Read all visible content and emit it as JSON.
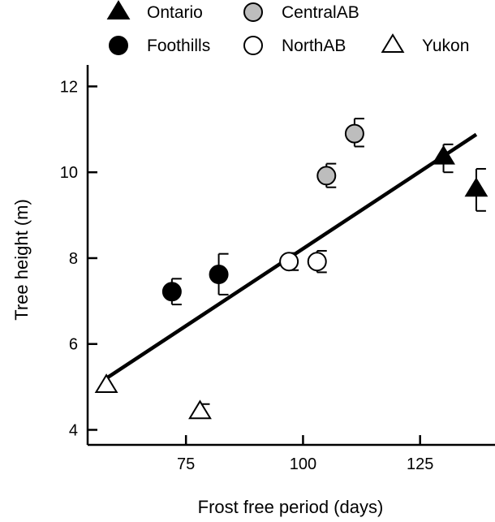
{
  "chart_data": {
    "type": "scatter",
    "title": "",
    "xlabel": "Frost free period (days)",
    "ylabel": "Tree height (m)",
    "xlim": [
      54,
      141
    ],
    "ylim": [
      3.65,
      12.5
    ],
    "xticks": [
      75,
      100,
      125
    ],
    "yticks": [
      4,
      6,
      8,
      10,
      12
    ],
    "grid": false,
    "legend_position": "top",
    "series": [
      {
        "name": "Ontario",
        "marker": "triangle",
        "fill": "#000000",
        "points": [
          {
            "x": 130,
            "y": 10.35,
            "lo": 10.0,
            "hi": 10.65
          },
          {
            "x": 137,
            "y": 9.6,
            "lo": 9.1,
            "hi": 10.08
          }
        ]
      },
      {
        "name": "CentralAB",
        "marker": "circle",
        "fill": "#bdbdbd",
        "points": [
          {
            "x": 105,
            "y": 9.92,
            "lo": 9.65,
            "hi": 10.2
          },
          {
            "x": 111,
            "y": 10.9,
            "lo": 10.6,
            "hi": 11.25
          }
        ]
      },
      {
        "name": "Foothills",
        "marker": "circle",
        "fill": "#000000",
        "points": [
          {
            "x": 72,
            "y": 7.22,
            "lo": 6.92,
            "hi": 7.52
          },
          {
            "x": 82,
            "y": 7.62,
            "lo": 7.15,
            "hi": 8.1
          }
        ]
      },
      {
        "name": "NorthAB",
        "marker": "circle",
        "fill": "#ffffff",
        "points": [
          {
            "x": 97,
            "y": 7.92,
            "lo": 7.72,
            "hi": 8.12
          },
          {
            "x": 103,
            "y": 7.92,
            "lo": 7.67,
            "hi": 8.17
          }
        ]
      },
      {
        "name": "Yukon",
        "marker": "triangle",
        "fill": "#ffffff",
        "points": [
          {
            "x": 58,
            "y": 5.03,
            "lo": 5.03,
            "hi": 5.03
          },
          {
            "x": 78,
            "y": 4.42,
            "lo": 4.3,
            "hi": 4.6
          }
        ]
      }
    ],
    "trendline": {
      "x0": 58,
      "y0": 5.2,
      "x1": 137,
      "y1": 10.88
    }
  }
}
